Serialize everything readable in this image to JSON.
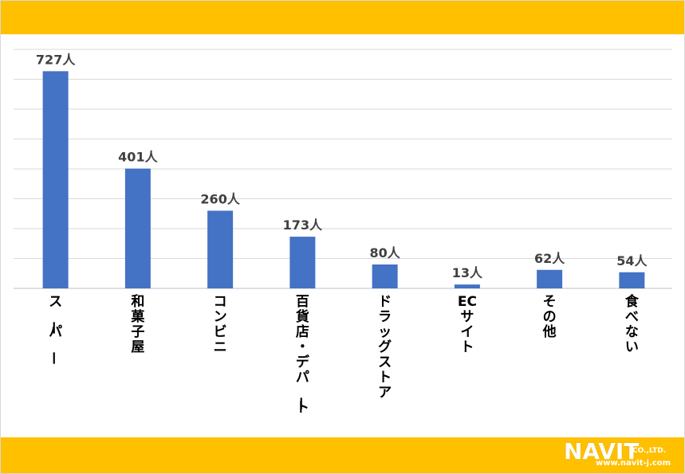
{
  "chart_data": {
    "type": "bar",
    "categories": [
      "スーパー",
      "和菓子屋",
      "コンビニ",
      "百貨店・デパート",
      "ドラッグストア",
      "ECサイト",
      "その他",
      "食べない"
    ],
    "values": [
      727,
      401,
      260,
      173,
      80,
      13,
      62,
      54
    ],
    "value_labels": [
      "727人",
      "401人",
      "260人",
      "173人",
      "80人",
      "13人",
      "62人",
      "54人"
    ],
    "ylim": [
      0,
      800
    ],
    "grid": true,
    "bar_color": "#4472c4",
    "title": "",
    "xlabel": "",
    "ylabel": ""
  },
  "header_band": {
    "color": "#ffc000"
  },
  "footer_band": {
    "color": "#ffc000"
  },
  "logo": {
    "brand": "NAVIT",
    "company": "CO.,LTD.",
    "url": "www.navit-j.com"
  }
}
